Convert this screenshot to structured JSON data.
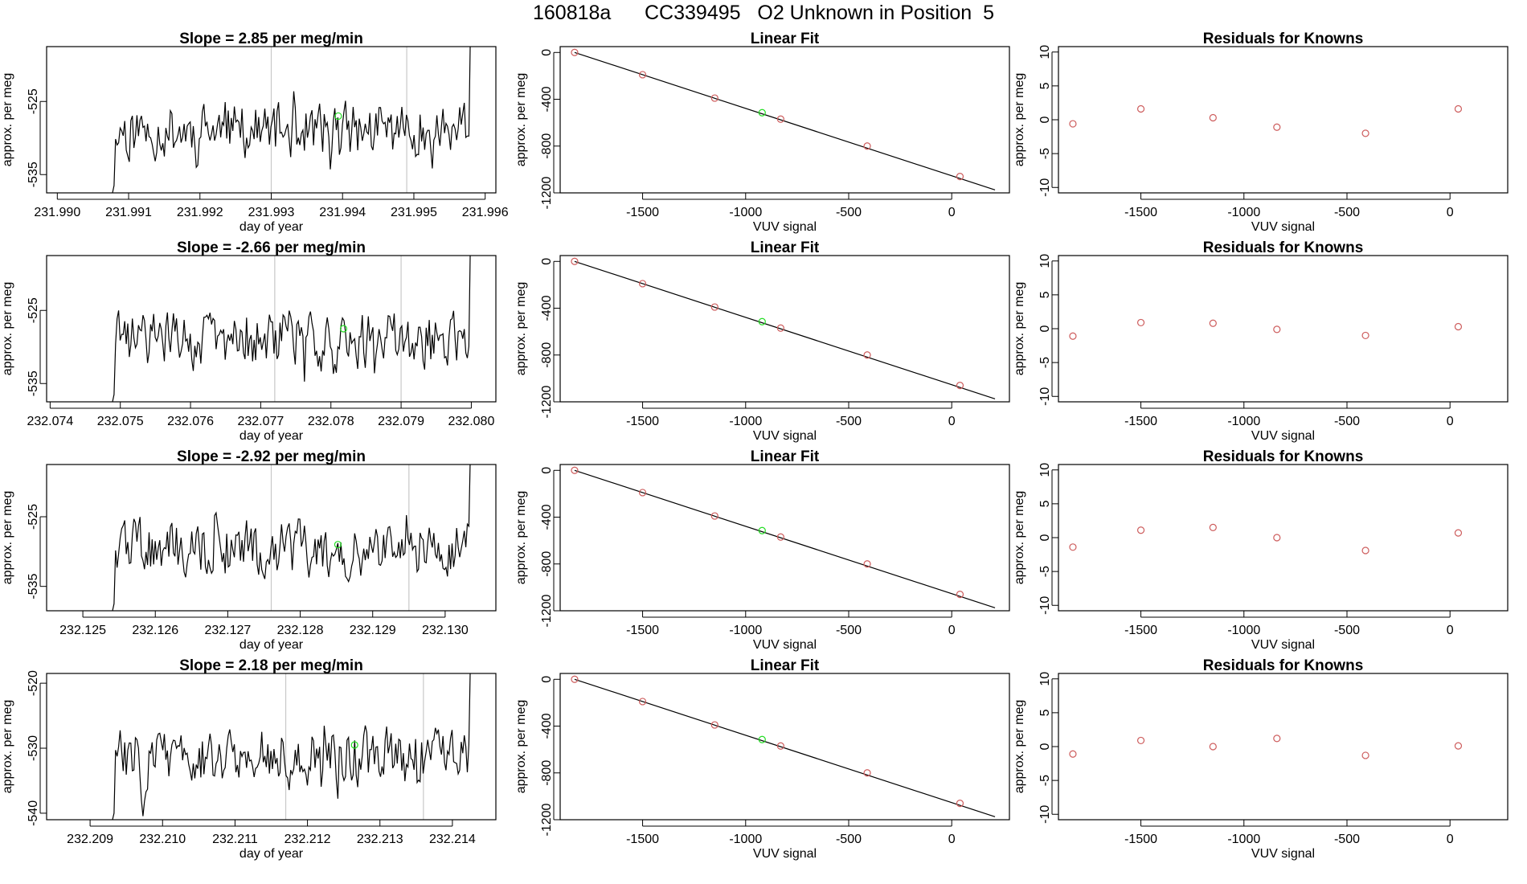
{
  "page_title": "160818a      CC339495   O2 Unknown in Position  5",
  "colors": {
    "line": "#000000",
    "known_point": "#cd5c5c",
    "unknown_point": "#22dd22",
    "vline": "#c8c8c8"
  },
  "chart_data": [
    {
      "type": "line",
      "title": "Slope =  2.85  per meg/min",
      "xlabel": "day of year",
      "ylabel": "approx. per meg",
      "xlim": [
        231.98985,
        231.99615
      ],
      "ylim": [
        -537.5,
        -517.5
      ],
      "xticks": [
        "231.990",
        "231.991",
        "231.992",
        "231.993",
        "231.994",
        "231.995",
        "231.996"
      ],
      "yticks": [
        "-525",
        "-535"
      ],
      "ytick_values": [
        -525,
        -535
      ],
      "vlines": [
        231.993,
        231.9949
      ],
      "unknown_point": [
        231.99394,
        -527.0
      ],
      "seed": 11
    },
    {
      "type": "scatter",
      "title": "Linear Fit",
      "xlabel": "VUV signal",
      "ylabel": "approx. per meg",
      "xlim": [
        -1900,
        280
      ],
      "ylim": [
        -1200,
        50
      ],
      "xticks": [
        "-1500",
        "-1000",
        "-500",
        "0"
      ],
      "xtick_values": [
        -1500,
        -1000,
        -500,
        0
      ],
      "yticks": [
        "0",
        "-400",
        "-800",
        "-1200"
      ],
      "ytick_values": [
        0,
        -400,
        -800,
        -1200
      ],
      "fit_line": {
        "x": [
          -1830,
          210
        ],
        "y": [
          0,
          -1175
        ]
      },
      "known_x": [
        -1830,
        -1500,
        -1150,
        -830,
        -410,
        40
      ],
      "known_y": [
        0,
        -190,
        -390,
        -570,
        -800,
        -1060
      ],
      "unknown_x": [
        -920
      ],
      "unknown_y": [
        -515
      ]
    },
    {
      "type": "scatter",
      "title": "Residuals for Knowns",
      "xlabel": "VUV signal",
      "ylabel": "approx. per meg",
      "xlim": [
        -1900,
        280
      ],
      "ylim": [
        -10.8,
        10.8
      ],
      "xticks": [
        "-1500",
        "-1000",
        "-500",
        "0"
      ],
      "xtick_values": [
        -1500,
        -1000,
        -500,
        0
      ],
      "yticks": [
        "10",
        "5",
        "0",
        "-5",
        "-10"
      ],
      "ytick_values": [
        10,
        5,
        0,
        -5,
        -10
      ],
      "x": [
        -1830,
        -1500,
        -1150,
        -840,
        -410,
        40
      ],
      "y": [
        -0.6,
        1.6,
        0.3,
        -1.1,
        -2.0,
        1.6
      ]
    },
    {
      "type": "line",
      "title": "Slope =  -2.66  per meg/min",
      "xlabel": "day of year",
      "ylabel": "approx. per meg",
      "xlim": [
        232.07395,
        232.08035
      ],
      "ylim": [
        -537.5,
        -517.5
      ],
      "xticks": [
        "232.074",
        "232.075",
        "232.076",
        "232.077",
        "232.078",
        "232.079",
        "232.080"
      ],
      "yticks": [
        "-525",
        "-535"
      ],
      "ytick_values": [
        -525,
        -535
      ],
      "vlines": [
        232.0772,
        232.079
      ],
      "unknown_point": [
        232.07818,
        -527.5
      ],
      "seed": 29
    },
    {
      "type": "scatter",
      "title": "Linear Fit",
      "xlabel": "VUV signal",
      "ylabel": "approx. per meg",
      "xlim": [
        -1900,
        280
      ],
      "ylim": [
        -1200,
        50
      ],
      "xticks": [
        "-1500",
        "-1000",
        "-500",
        "0"
      ],
      "xtick_values": [
        -1500,
        -1000,
        -500,
        0
      ],
      "yticks": [
        "0",
        "-400",
        "-800",
        "-1200"
      ],
      "ytick_values": [
        0,
        -400,
        -800,
        -1200
      ],
      "fit_line": {
        "x": [
          -1830,
          210
        ],
        "y": [
          0,
          -1175
        ]
      },
      "known_x": [
        -1830,
        -1500,
        -1150,
        -830,
        -410,
        40
      ],
      "known_y": [
        0,
        -190,
        -390,
        -570,
        -800,
        -1060
      ],
      "unknown_x": [
        -920
      ],
      "unknown_y": [
        -515
      ]
    },
    {
      "type": "scatter",
      "title": "Residuals for Knowns",
      "xlabel": "VUV signal",
      "ylabel": "approx. per meg",
      "xlim": [
        -1900,
        280
      ],
      "ylim": [
        -10.8,
        10.8
      ],
      "xticks": [
        "-1500",
        "-1000",
        "-500",
        "0"
      ],
      "xtick_values": [
        -1500,
        -1000,
        -500,
        0
      ],
      "yticks": [
        "10",
        "5",
        "0",
        "-5",
        "-10"
      ],
      "ytick_values": [
        10,
        5,
        0,
        -5,
        -10
      ],
      "x": [
        -1830,
        -1500,
        -1150,
        -840,
        -410,
        40
      ],
      "y": [
        -1.1,
        0.9,
        0.8,
        -0.1,
        -1.0,
        0.3
      ]
    },
    {
      "type": "line",
      "title": "Slope =  -2.92  per meg/min",
      "xlabel": "day of year",
      "ylabel": "approx. per meg",
      "xlim": [
        232.1245,
        232.1307
      ],
      "ylim": [
        -538.5,
        -517.5
      ],
      "xticks": [
        "232.125",
        "232.126",
        "232.127",
        "232.128",
        "232.129",
        "232.130"
      ],
      "yticks": [
        "-525",
        "-535"
      ],
      "ytick_values": [
        -525,
        -535
      ],
      "vlines": [
        232.1276,
        232.1295
      ],
      "unknown_point": [
        232.12852,
        -529.0
      ],
      "seed": 47
    },
    {
      "type": "scatter",
      "title": "Linear Fit",
      "xlabel": "VUV signal",
      "ylabel": "approx. per meg",
      "xlim": [
        -1900,
        280
      ],
      "ylim": [
        -1200,
        50
      ],
      "xticks": [
        "-1500",
        "-1000",
        "-500",
        "0"
      ],
      "xtick_values": [
        -1500,
        -1000,
        -500,
        0
      ],
      "yticks": [
        "0",
        "-400",
        "-800",
        "-1200"
      ],
      "ytick_values": [
        0,
        -400,
        -800,
        -1200
      ],
      "fit_line": {
        "x": [
          -1830,
          210
        ],
        "y": [
          0,
          -1175
        ]
      },
      "known_x": [
        -1830,
        -1500,
        -1150,
        -830,
        -410,
        40
      ],
      "known_y": [
        0,
        -190,
        -390,
        -570,
        -800,
        -1060
      ],
      "unknown_x": [
        -920
      ],
      "unknown_y": [
        -515
      ]
    },
    {
      "type": "scatter",
      "title": "Residuals for Knowns",
      "xlabel": "VUV signal",
      "ylabel": "approx. per meg",
      "xlim": [
        -1900,
        280
      ],
      "ylim": [
        -10.8,
        10.8
      ],
      "xticks": [
        "-1500",
        "-1000",
        "-500",
        "0"
      ],
      "xtick_values": [
        -1500,
        -1000,
        -500,
        0
      ],
      "yticks": [
        "10",
        "5",
        "0",
        "-5",
        "-10"
      ],
      "ytick_values": [
        10,
        5,
        0,
        -5,
        -10
      ],
      "x": [
        -1830,
        -1500,
        -1150,
        -840,
        -410,
        40
      ],
      "y": [
        -1.4,
        1.1,
        1.5,
        0.0,
        -1.9,
        0.7
      ]
    },
    {
      "type": "line",
      "title": "Slope =  2.18  per meg/min",
      "xlabel": "day of year",
      "ylabel": "approx. per meg",
      "xlim": [
        232.2084,
        232.2146
      ],
      "ylim": [
        -541,
        -518.5
      ],
      "xticks": [
        "232.209",
        "232.210",
        "232.211",
        "232.212",
        "232.213",
        "232.214"
      ],
      "yticks": [
        "-520",
        "-530",
        "-540"
      ],
      "ytick_values": [
        -520,
        -530,
        -540
      ],
      "vlines": [
        232.2117,
        232.2136
      ],
      "unknown_point": [
        232.21265,
        -529.5
      ],
      "seed": 83
    },
    {
      "type": "scatter",
      "title": "Linear Fit",
      "xlabel": "VUV signal",
      "ylabel": "approx. per meg",
      "xlim": [
        -1900,
        280
      ],
      "ylim": [
        -1200,
        50
      ],
      "xticks": [
        "-1500",
        "-1000",
        "-500",
        "0"
      ],
      "xtick_values": [
        -1500,
        -1000,
        -500,
        0
      ],
      "yticks": [
        "0",
        "-400",
        "-800",
        "-1200"
      ],
      "ytick_values": [
        0,
        -400,
        -800,
        -1200
      ],
      "fit_line": {
        "x": [
          -1830,
          210
        ],
        "y": [
          0,
          -1175
        ]
      },
      "known_x": [
        -1830,
        -1500,
        -1150,
        -830,
        -410,
        40
      ],
      "known_y": [
        0,
        -190,
        -390,
        -570,
        -800,
        -1060
      ],
      "unknown_x": [
        -920
      ],
      "unknown_y": [
        -515
      ]
    },
    {
      "type": "scatter",
      "title": "Residuals for Knowns",
      "xlabel": "VUV signal",
      "ylabel": "approx. per meg",
      "xlim": [
        -1900,
        280
      ],
      "ylim": [
        -10.8,
        10.8
      ],
      "xticks": [
        "-1500",
        "-1000",
        "-500",
        "0"
      ],
      "xtick_values": [
        -1500,
        -1000,
        -500,
        0
      ],
      "yticks": [
        "10",
        "5",
        "0",
        "-5",
        "-10"
      ],
      "ytick_values": [
        10,
        5,
        0,
        -5,
        -10
      ],
      "x": [
        -1830,
        -1500,
        -1150,
        -840,
        -410,
        40
      ],
      "y": [
        -1.1,
        0.9,
        0.0,
        1.2,
        -1.3,
        0.1
      ]
    }
  ]
}
